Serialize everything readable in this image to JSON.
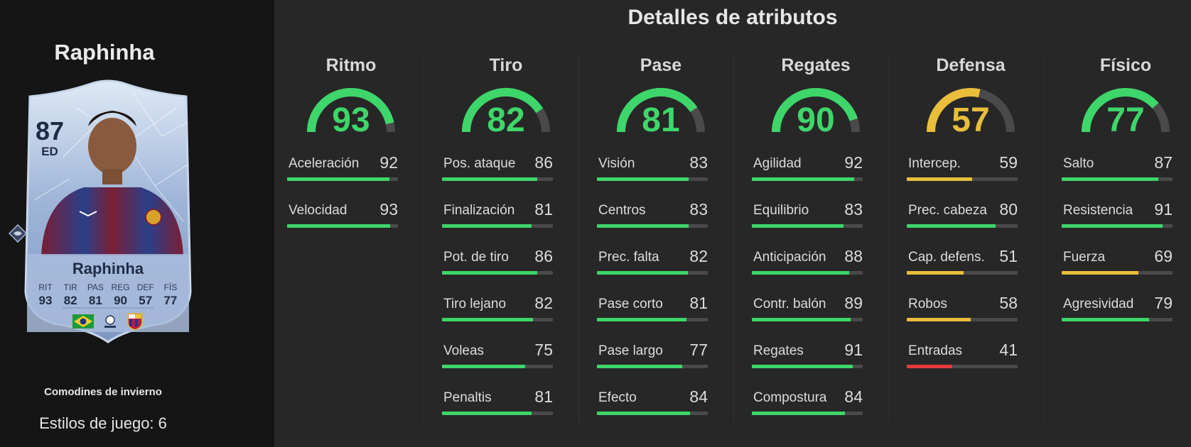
{
  "player": {
    "name": "Raphinha",
    "card": {
      "rating": "87",
      "position": "ED",
      "name": "Raphinha",
      "stats": [
        {
          "label": "RIT",
          "value": "93"
        },
        {
          "label": "TIR",
          "value": "82"
        },
        {
          "label": "PAS",
          "value": "81"
        },
        {
          "label": "REG",
          "value": "90"
        },
        {
          "label": "DEF",
          "value": "57"
        },
        {
          "label": "FÍS",
          "value": "77"
        }
      ],
      "icons": [
        "brazil-flag-icon",
        "laliga-logo-icon",
        "barcelona-crest-icon"
      ]
    },
    "promo": "Comodines de invierno",
    "playstyles": "Estilos de juego: 6"
  },
  "page_title": "Detalles de atributos",
  "colors": {
    "green": "#3ed66a",
    "yellow": "#e8be3b",
    "red": "#e23b3b",
    "track": "#4a4a4a"
  },
  "categories": [
    {
      "title": "Ritmo",
      "value": 93,
      "value_text": "93",
      "attributes": [
        {
          "name": "Aceleración",
          "value": 92,
          "value_text": "92"
        },
        {
          "name": "Velocidad",
          "value": 93,
          "value_text": "93"
        }
      ]
    },
    {
      "title": "Tiro",
      "value": 82,
      "value_text": "82",
      "attributes": [
        {
          "name": "Pos. ataque",
          "value": 86,
          "value_text": "86"
        },
        {
          "name": "Finalización",
          "value": 81,
          "value_text": "81"
        },
        {
          "name": "Pot. de tiro",
          "value": 86,
          "value_text": "86"
        },
        {
          "name": "Tiro lejano",
          "value": 82,
          "value_text": "82"
        },
        {
          "name": "Voleas",
          "value": 75,
          "value_text": "75"
        },
        {
          "name": "Penaltis",
          "value": 81,
          "value_text": "81"
        }
      ]
    },
    {
      "title": "Pase",
      "value": 81,
      "value_text": "81",
      "attributes": [
        {
          "name": "Visión",
          "value": 83,
          "value_text": "83"
        },
        {
          "name": "Centros",
          "value": 83,
          "value_text": "83"
        },
        {
          "name": "Prec. falta",
          "value": 82,
          "value_text": "82"
        },
        {
          "name": "Pase corto",
          "value": 81,
          "value_text": "81"
        },
        {
          "name": "Pase largo",
          "value": 77,
          "value_text": "77"
        },
        {
          "name": "Efecto",
          "value": 84,
          "value_text": "84"
        }
      ]
    },
    {
      "title": "Regates",
      "value": 90,
      "value_text": "90",
      "attributes": [
        {
          "name": "Agilidad",
          "value": 92,
          "value_text": "92"
        },
        {
          "name": "Equilibrio",
          "value": 83,
          "value_text": "83"
        },
        {
          "name": "Anticipación",
          "value": 88,
          "value_text": "88"
        },
        {
          "name": "Contr. balón",
          "value": 89,
          "value_text": "89"
        },
        {
          "name": "Regates",
          "value": 91,
          "value_text": "91"
        },
        {
          "name": "Compostura",
          "value": 84,
          "value_text": "84"
        }
      ]
    },
    {
      "title": "Defensa",
      "value": 57,
      "value_text": "57",
      "attributes": [
        {
          "name": "Intercep.",
          "value": 59,
          "value_text": "59"
        },
        {
          "name": "Prec. cabeza",
          "value": 80,
          "value_text": "80"
        },
        {
          "name": "Cap. defens.",
          "value": 51,
          "value_text": "51"
        },
        {
          "name": "Robos",
          "value": 58,
          "value_text": "58"
        },
        {
          "name": "Entradas",
          "value": 41,
          "value_text": "41"
        }
      ]
    },
    {
      "title": "Físico",
      "value": 77,
      "value_text": "77",
      "attributes": [
        {
          "name": "Salto",
          "value": 87,
          "value_text": "87"
        },
        {
          "name": "Resistencia",
          "value": 91,
          "value_text": "91"
        },
        {
          "name": "Fuerza",
          "value": 69,
          "value_text": "69"
        },
        {
          "name": "Agresividad",
          "value": 79,
          "value_text": "79"
        }
      ]
    }
  ]
}
